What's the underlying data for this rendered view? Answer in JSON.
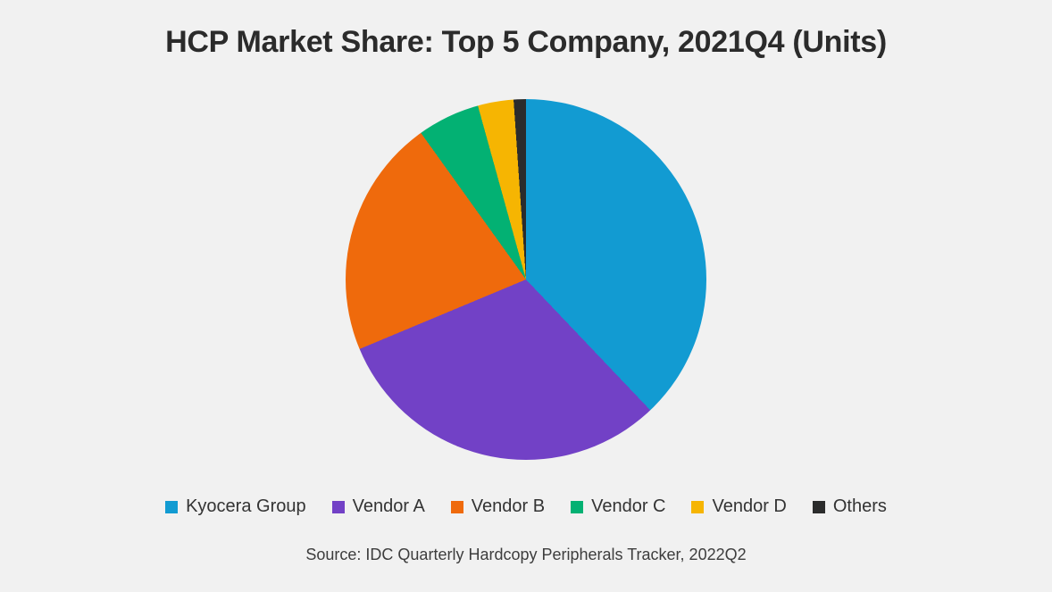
{
  "chart_data": {
    "type": "pie",
    "title": "HCP Market Share: Top 5 Company, 2021Q4 (Units)",
    "labels": [
      "Kyocera Group",
      "Vendor A",
      "Vendor B",
      "Vendor C",
      "Vendor D",
      "Others"
    ],
    "values": [
      37.9,
      30.8,
      21.4,
      5.6,
      3.2,
      1.1
    ],
    "unit": "percent-of-circle (estimated from slice angles; no numeric labels shown)",
    "colors": [
      "#129BD2",
      "#7241C6",
      "#EF6A0C",
      "#03B173",
      "#F6B502",
      "#2B2C2C"
    ],
    "start_angle_deg": 0,
    "direction": "clockwise",
    "legend_position": "bottom",
    "background": "#F1F1F1",
    "source_note": "Source: IDC Quarterly Hardcopy Peripherals Tracker, 2022Q2"
  }
}
